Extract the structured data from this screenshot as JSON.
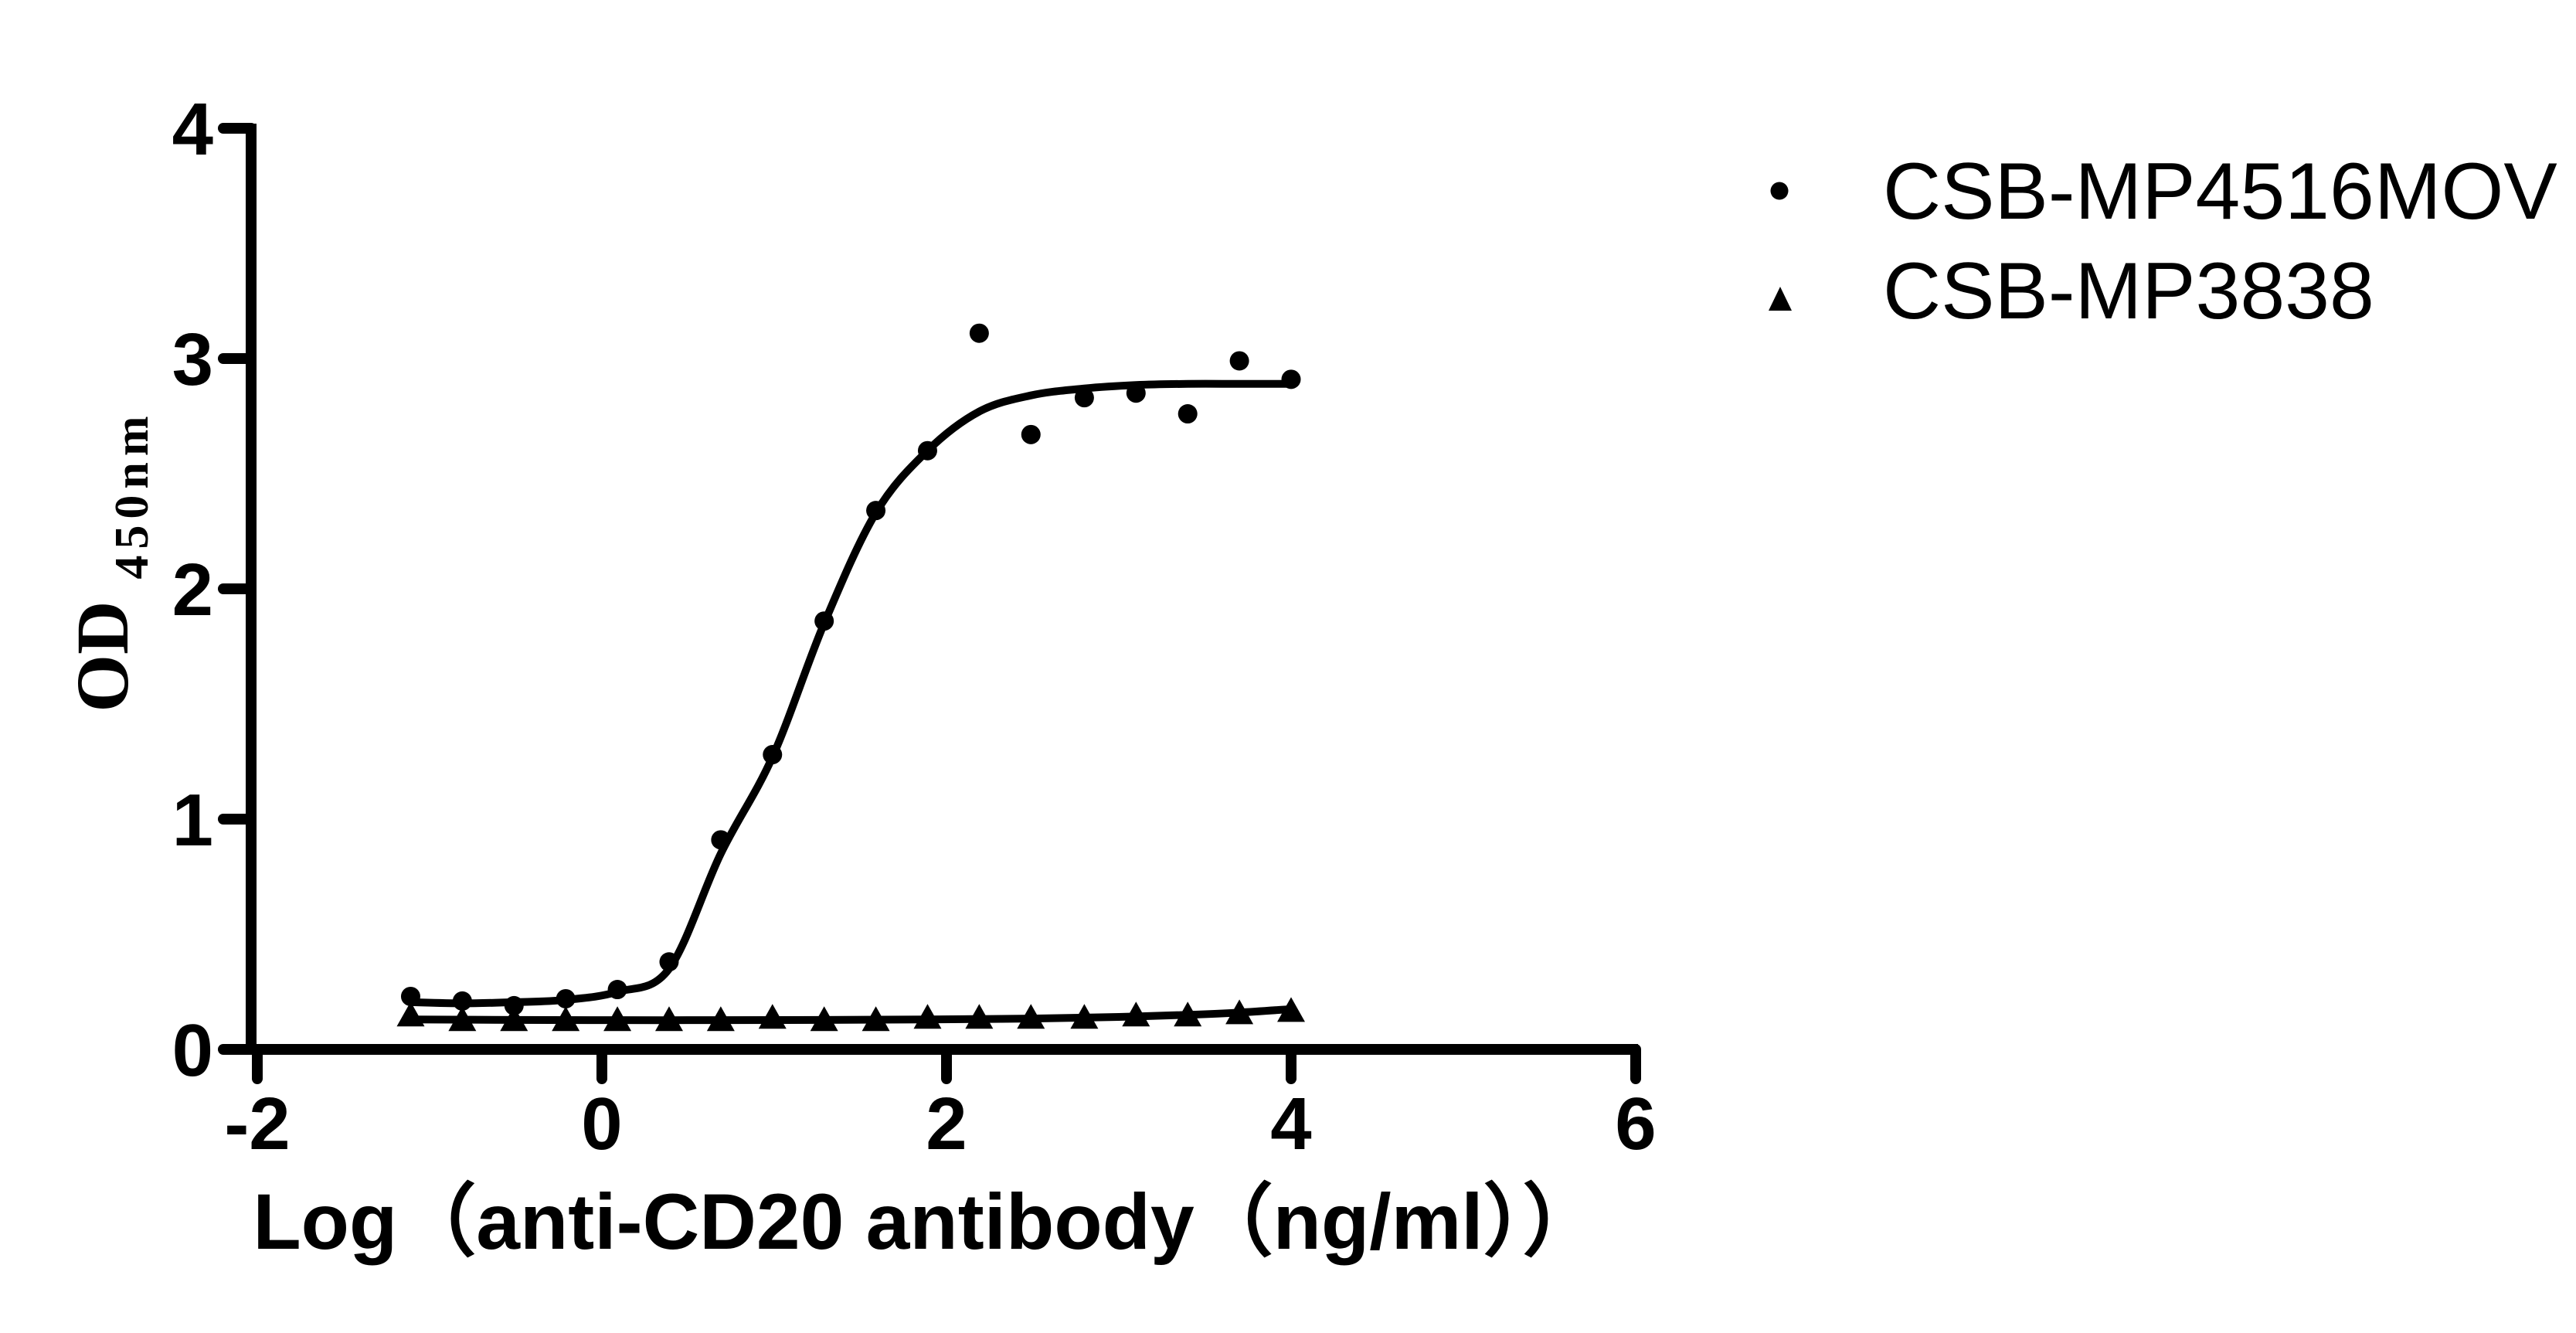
{
  "figure": {
    "background": "#ffffff",
    "foreground": "#000000"
  },
  "chart_data": {
    "type": "scatter",
    "title": "",
    "xlabel": "Log（anti-CD20 antibody（ng/ml））",
    "ylabel": "OD",
    "ylabel_sub": "450nm",
    "xlim": [
      -2,
      6
    ],
    "ylim": [
      0,
      4
    ],
    "xticks": [
      "-2",
      "0",
      "2",
      "4",
      "6"
    ],
    "yticks": [
      "0",
      "1",
      "2",
      "3",
      "4"
    ],
    "grid": false,
    "legend_position": "top-right",
    "x": [
      -1.11,
      -0.81,
      -0.51,
      -0.21,
      0.09,
      0.39,
      0.69,
      0.99,
      1.29,
      1.59,
      1.89,
      2.19,
      2.49,
      2.8,
      3.1,
      3.4,
      3.7,
      4.0
    ],
    "series": [
      {
        "name": "CSB-MP4516MOV",
        "marker": "circle",
        "values": [
          0.23,
          0.21,
          0.19,
          0.22,
          0.26,
          0.38,
          0.91,
          1.28,
          1.86,
          2.34,
          2.6,
          3.11,
          2.67,
          2.83,
          2.85,
          2.76,
          2.99,
          2.91
        ],
        "fit_curve": [
          [
            -1.11,
            0.205
          ],
          [
            -0.81,
            0.2
          ],
          [
            -0.51,
            0.205
          ],
          [
            -0.21,
            0.215
          ],
          [
            0.09,
            0.25
          ],
          [
            0.39,
            0.35
          ],
          [
            0.69,
            0.85
          ],
          [
            0.99,
            1.27
          ],
          [
            1.29,
            1.85
          ],
          [
            1.59,
            2.33
          ],
          [
            1.89,
            2.6
          ],
          [
            2.19,
            2.77
          ],
          [
            2.49,
            2.84
          ],
          [
            2.8,
            2.87
          ],
          [
            3.1,
            2.885
          ],
          [
            3.4,
            2.89
          ],
          [
            3.7,
            2.89
          ],
          [
            4.0,
            2.89
          ]
        ]
      },
      {
        "name": "CSB-MP3838",
        "marker": "triangle",
        "values": [
          0.15,
          0.13,
          0.13,
          0.13,
          0.13,
          0.13,
          0.13,
          0.14,
          0.13,
          0.13,
          0.14,
          0.14,
          0.14,
          0.14,
          0.15,
          0.15,
          0.16,
          0.17
        ],
        "fit_curve": [
          [
            -1.11,
            0.13
          ],
          [
            -0.51,
            0.128
          ],
          [
            0.09,
            0.127
          ],
          [
            0.69,
            0.127
          ],
          [
            1.29,
            0.128
          ],
          [
            1.89,
            0.13
          ],
          [
            2.49,
            0.134
          ],
          [
            2.8,
            0.138
          ],
          [
            3.1,
            0.143
          ],
          [
            3.4,
            0.15
          ],
          [
            3.7,
            0.16
          ],
          [
            4.0,
            0.175
          ]
        ]
      }
    ]
  }
}
